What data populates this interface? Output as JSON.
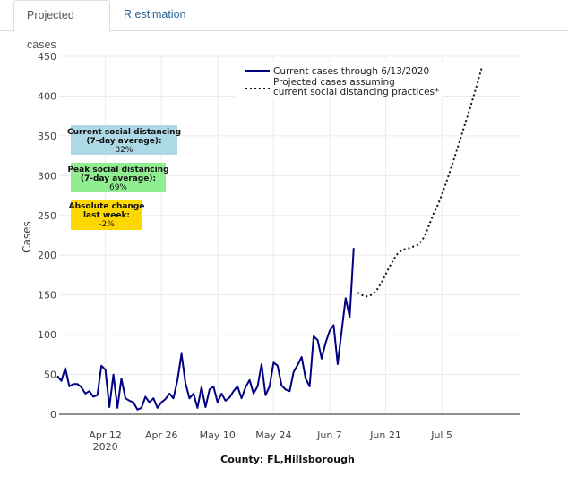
{
  "tabs": [
    {
      "label": "Projected cases",
      "active": true
    },
    {
      "label": "R estimation",
      "active": false
    }
  ],
  "colors": {
    "current_line": "#000080",
    "projected_line": "#111111",
    "box_current": "#add8e6",
    "box_peak": "#90ee90",
    "box_change": "#ffd700",
    "tab_link": "#2a6496"
  },
  "info_boxes": [
    {
      "lines": [
        "Current social distancing",
        "(7-day average):",
        "32%"
      ]
    },
    {
      "lines": [
        "Peak social distancing",
        "(7-day average):",
        "69%"
      ]
    },
    {
      "lines": [
        "Absolute change",
        "last week:",
        "-2%"
      ]
    }
  ],
  "chart_data": {
    "type": "line",
    "title": "",
    "xlabel": "County: FL,Hillsborough",
    "ylabel": "Cases",
    "ylim": [
      0,
      450
    ],
    "yticks": [
      0,
      50,
      100,
      150,
      200,
      250,
      300,
      350,
      400,
      450
    ],
    "x_start_date": "2020-03-31",
    "xlim_days": [
      0,
      100
    ],
    "xticks": [
      {
        "day": 12,
        "label": "Apr 12",
        "sublabel": "2020"
      },
      {
        "day": 26,
        "label": "Apr 26",
        "sublabel": ""
      },
      {
        "day": 40,
        "label": "May 10",
        "sublabel": ""
      },
      {
        "day": 54,
        "label": "May 24",
        "sublabel": ""
      },
      {
        "day": 68,
        "label": "Jun 7",
        "sublabel": ""
      },
      {
        "day": 82,
        "label": "Jun 21",
        "sublabel": ""
      },
      {
        "day": 96,
        "label": "Jul 5",
        "sublabel": ""
      }
    ],
    "grid": true,
    "legend_position": "top-right",
    "series": [
      {
        "name": "Current cases through 6/13/2020",
        "style": "solid",
        "start_day": 0,
        "values": [
          48,
          42,
          58,
          35,
          38,
          38,
          34,
          26,
          29,
          22,
          24,
          61,
          56,
          9,
          50,
          8,
          45,
          20,
          17,
          15,
          6,
          8,
          22,
          15,
          20,
          8,
          15,
          19,
          26,
          20,
          43,
          76,
          39,
          20,
          26,
          8,
          34,
          9,
          31,
          35,
          15,
          26,
          17,
          21,
          29,
          35,
          20,
          34,
          43,
          26,
          35,
          63,
          24,
          35,
          65,
          61,
          36,
          31,
          29,
          53,
          62,
          72,
          45,
          35,
          98,
          93,
          70,
          90,
          105,
          112,
          63,
          105,
          146,
          122,
          209
        ]
      },
      {
        "name": "Projected cases assuming current social distancing practices*",
        "style": "dotted",
        "start_day": 75,
        "values": [
          153,
          150,
          148,
          149,
          152,
          158,
          166,
          176,
          186,
          195,
          202,
          206,
          208,
          209,
          211,
          213,
          218,
          227,
          240,
          253,
          263,
          276,
          290,
          305,
          320,
          336,
          352,
          368,
          384,
          401,
          418,
          436
        ]
      }
    ]
  }
}
